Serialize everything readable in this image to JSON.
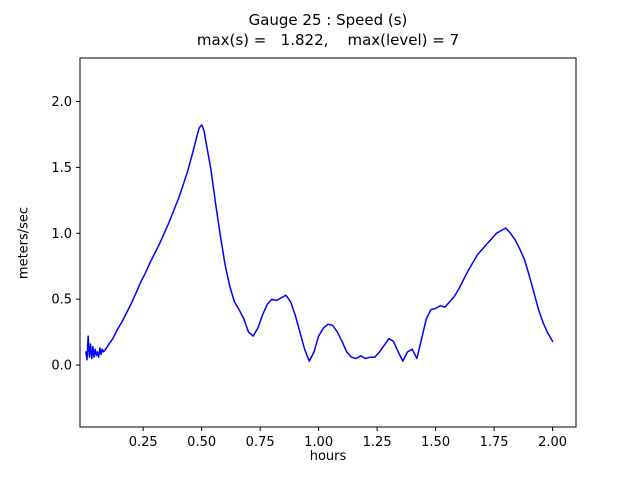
{
  "figure": {
    "title": "Gauge 25 : Speed (s)",
    "subtitle": "max(s) =   1.822,    max(level) = 7",
    "xlabel": "hours",
    "ylabel": "meters/sec"
  },
  "chart_data": {
    "type": "line",
    "title": "Gauge 25 : Speed (s)",
    "subtitle": "max(s) =   1.822,    max(level) = 7",
    "xlabel": "hours",
    "ylabel": "meters/sec",
    "max_s": 1.822,
    "max_level": 7,
    "xlim": [
      -0.02,
      2.1
    ],
    "ylim": [
      -0.47,
      2.33
    ],
    "grid": false,
    "legend_position": "none",
    "line_color": "#0000ff",
    "x_ticks": {
      "values": [
        0.25,
        0.5,
        0.75,
        1.0,
        1.25,
        1.5,
        1.75,
        2.0
      ],
      "labels": [
        "0.25",
        "0.50",
        "0.75",
        "1.00",
        "1.25",
        "1.50",
        "1.75",
        "2.00"
      ]
    },
    "y_ticks": {
      "values": [
        0.0,
        0.5,
        1.0,
        1.5,
        2.0
      ],
      "labels": [
        "0.0",
        "0.5",
        "1.0",
        "1.5",
        "2.0"
      ]
    },
    "series": [
      {
        "name": "speed",
        "x": [
          0.005,
          0.01,
          0.015,
          0.02,
          0.025,
          0.03,
          0.035,
          0.04,
          0.045,
          0.05,
          0.055,
          0.06,
          0.065,
          0.07,
          0.075,
          0.08,
          0.09,
          0.1,
          0.12,
          0.14,
          0.16,
          0.18,
          0.2,
          0.22,
          0.24,
          0.26,
          0.28,
          0.3,
          0.32,
          0.34,
          0.36,
          0.38,
          0.4,
          0.42,
          0.44,
          0.46,
          0.48,
          0.49,
          0.5,
          0.51,
          0.52,
          0.54,
          0.56,
          0.58,
          0.6,
          0.62,
          0.64,
          0.66,
          0.68,
          0.7,
          0.72,
          0.74,
          0.76,
          0.78,
          0.8,
          0.82,
          0.84,
          0.86,
          0.88,
          0.9,
          0.92,
          0.94,
          0.96,
          0.98,
          1.0,
          1.02,
          1.04,
          1.06,
          1.08,
          1.1,
          1.12,
          1.14,
          1.16,
          1.18,
          1.2,
          1.22,
          1.24,
          1.26,
          1.28,
          1.3,
          1.32,
          1.34,
          1.36,
          1.38,
          1.4,
          1.42,
          1.44,
          1.46,
          1.48,
          1.5,
          1.52,
          1.54,
          1.56,
          1.58,
          1.6,
          1.62,
          1.64,
          1.66,
          1.68,
          1.7,
          1.72,
          1.74,
          1.76,
          1.78,
          1.8,
          1.82,
          1.84,
          1.86,
          1.88,
          1.9,
          1.92,
          1.94,
          1.96,
          1.98,
          2.0
        ],
        "y": [
          0.1,
          0.04,
          0.22,
          0.06,
          0.16,
          0.05,
          0.14,
          0.06,
          0.12,
          0.07,
          0.1,
          0.06,
          0.13,
          0.08,
          0.12,
          0.1,
          0.12,
          0.15,
          0.2,
          0.27,
          0.33,
          0.4,
          0.47,
          0.55,
          0.63,
          0.7,
          0.78,
          0.85,
          0.92,
          1.0,
          1.08,
          1.17,
          1.26,
          1.36,
          1.47,
          1.6,
          1.74,
          1.8,
          1.822,
          1.78,
          1.68,
          1.48,
          1.22,
          0.98,
          0.76,
          0.6,
          0.48,
          0.42,
          0.35,
          0.25,
          0.22,
          0.28,
          0.38,
          0.46,
          0.5,
          0.49,
          0.51,
          0.53,
          0.48,
          0.38,
          0.25,
          0.12,
          0.03,
          0.1,
          0.22,
          0.28,
          0.31,
          0.3,
          0.25,
          0.18,
          0.1,
          0.06,
          0.05,
          0.07,
          0.05,
          0.06,
          0.06,
          0.1,
          0.15,
          0.2,
          0.18,
          0.1,
          0.03,
          0.1,
          0.12,
          0.05,
          0.2,
          0.35,
          0.42,
          0.43,
          0.45,
          0.44,
          0.48,
          0.52,
          0.58,
          0.65,
          0.72,
          0.78,
          0.84,
          0.88,
          0.92,
          0.96,
          1.0,
          1.02,
          1.04,
          1.0,
          0.95,
          0.88,
          0.8,
          0.68,
          0.55,
          0.42,
          0.32,
          0.24,
          0.18
        ]
      }
    ]
  }
}
